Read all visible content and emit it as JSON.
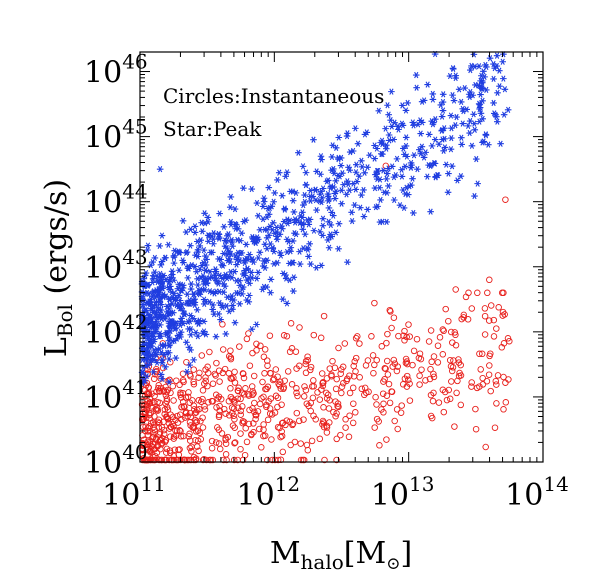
{
  "chart_data": {
    "type": "scatter",
    "title": "",
    "xlabel_main": "M",
    "xlabel_sub": "halo",
    "xlabel_unit_open": "[M",
    "xlabel_unit_sym": "⊙",
    "xlabel_unit_close": "]",
    "ylabel_main": "L",
    "ylabel_sub": "Bol",
    "ylabel_unit": " (ergs/s)",
    "x_scale": "log",
    "y_scale": "log",
    "xlim_exp": [
      11,
      14
    ],
    "ylim_exp": [
      40,
      46.3
    ],
    "x_ticks": [
      {
        "base": "10",
        "exp": "11"
      },
      {
        "base": "10",
        "exp": "12"
      },
      {
        "base": "10",
        "exp": "13"
      },
      {
        "base": "10",
        "exp": "14"
      }
    ],
    "y_ticks": [
      {
        "base": "10",
        "exp": "40"
      },
      {
        "base": "10",
        "exp": "41"
      },
      {
        "base": "10",
        "exp": "42"
      },
      {
        "base": "10",
        "exp": "43"
      },
      {
        "base": "10",
        "exp": "44"
      },
      {
        "base": "10",
        "exp": "45"
      },
      {
        "base": "10",
        "exp": "46"
      }
    ],
    "legend": {
      "line1": "Circles:Instantaneous",
      "line2": "Star:Peak",
      "placement": "top-left"
    },
    "series": [
      {
        "name": "Instantaneous",
        "marker": "open-circle",
        "color": "#e8201c",
        "seed": 7,
        "n_dense": 900,
        "x_exp_range": [
          11.0,
          13.75
        ],
        "y_exp_range": [
          40.0,
          42.6
        ],
        "highlights": [
          {
            "x": 13.72,
            "y": 44.03
          },
          {
            "x": 12.83,
            "y": 44.55
          },
          {
            "x": 13.35,
            "y": 42.65
          },
          {
            "x": 13.6,
            "y": 42.8
          },
          {
            "x": 13.7,
            "y": 42.25
          }
        ]
      },
      {
        "name": "Peak",
        "marker": "asterisk",
        "color": "#1f3de0",
        "seed": 13,
        "n_dense": 1100,
        "x_exp_range": [
          11.0,
          13.75
        ],
        "y_exp_range": [
          40.5,
          46.3
        ],
        "highlights": [
          {
            "x": 13.7,
            "y": 46.3
          },
          {
            "x": 13.7,
            "y": 46.15
          },
          {
            "x": 13.33,
            "y": 46.05
          },
          {
            "x": 13.35,
            "y": 45.9
          },
          {
            "x": 13.55,
            "y": 45.55
          },
          {
            "x": 11.15,
            "y": 44.5
          }
        ]
      }
    ]
  }
}
